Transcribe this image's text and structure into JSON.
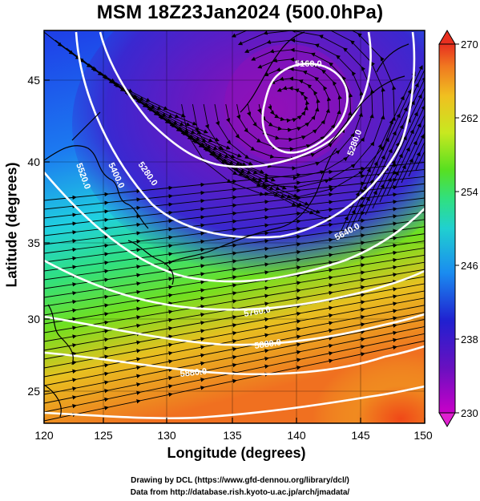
{
  "title": "MSM 18Z23Jan2024 (500.0hPa)",
  "axes": {
    "xlabel": "Longitude (degrees)",
    "ylabel": "Latitude  (degrees)",
    "xticks": [
      "120",
      "125",
      "130",
      "135",
      "140",
      "145",
      "150"
    ],
    "yticks": [
      "25",
      "30",
      "35",
      "40",
      "45"
    ]
  },
  "colorbar": {
    "ticks": [
      "270",
      "262",
      "254",
      "246",
      "238",
      "230"
    ],
    "range": [
      230,
      270
    ],
    "colors": [
      "#c800c8",
      "#6a10c0",
      "#2020d0",
      "#1a8cf0",
      "#20d0d0",
      "#30e080",
      "#58e020",
      "#c8e820",
      "#f0c020",
      "#f07820",
      "#e83020"
    ]
  },
  "contour_labels": [
    "5160.0",
    "5280.0",
    "5280.0",
    "5400.0",
    "5520.0",
    "5640.0",
    "5760.0",
    "5880.0",
    "5880.0"
  ],
  "credits": {
    "line1": "Drawing by DCL (https://www.gfd-dennou.org/library/dcl/)",
    "line2": "Data from http://database.rish.kyoto-u.ac.jp/arch/jmadata/"
  }
}
